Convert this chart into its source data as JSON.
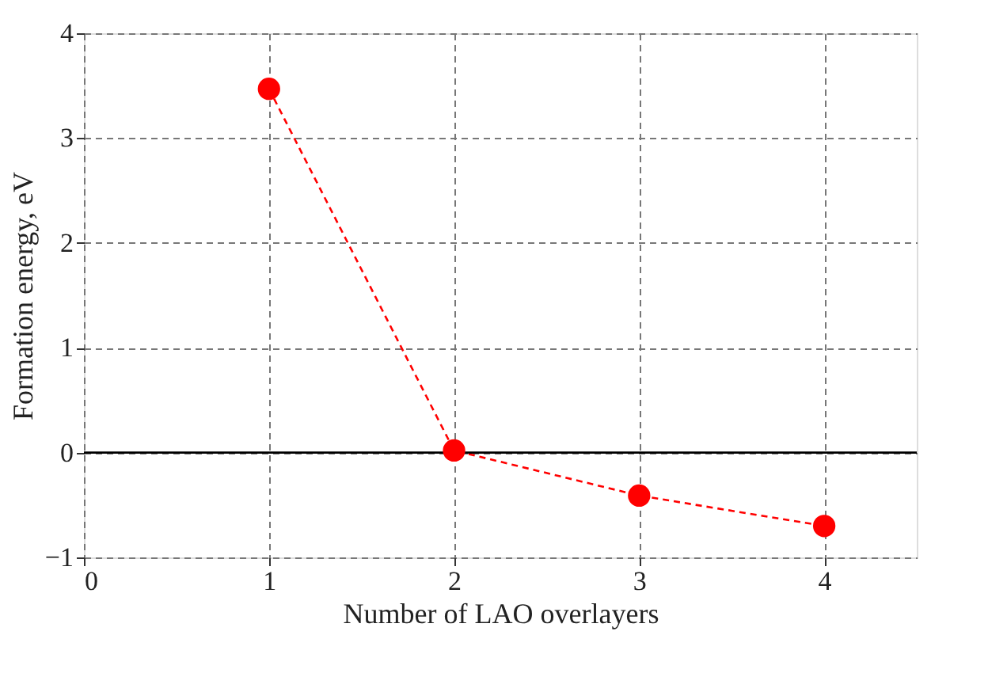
{
  "chart_data": {
    "type": "line",
    "xlabel": "Number of LAO overlayers",
    "ylabel": "Formation energy, eV",
    "x": [
      1,
      2,
      3,
      4
    ],
    "series": [
      {
        "color": "#ff0000",
        "values": [
          3.47,
          0.02,
          -0.41,
          -0.7
        ]
      }
    ],
    "xlim": [
      0,
      4.5
    ],
    "ylim": [
      -1,
      4
    ],
    "xticks": [
      0,
      1,
      2,
      3,
      4
    ],
    "yticks": [
      -1,
      0,
      1,
      2,
      3,
      4
    ],
    "grid": true,
    "marker": "circle",
    "line_style": "dashed",
    "ref_lines": [
      {
        "axis": "y",
        "value": 0,
        "color": "#000000",
        "line_style": "solid"
      }
    ]
  }
}
